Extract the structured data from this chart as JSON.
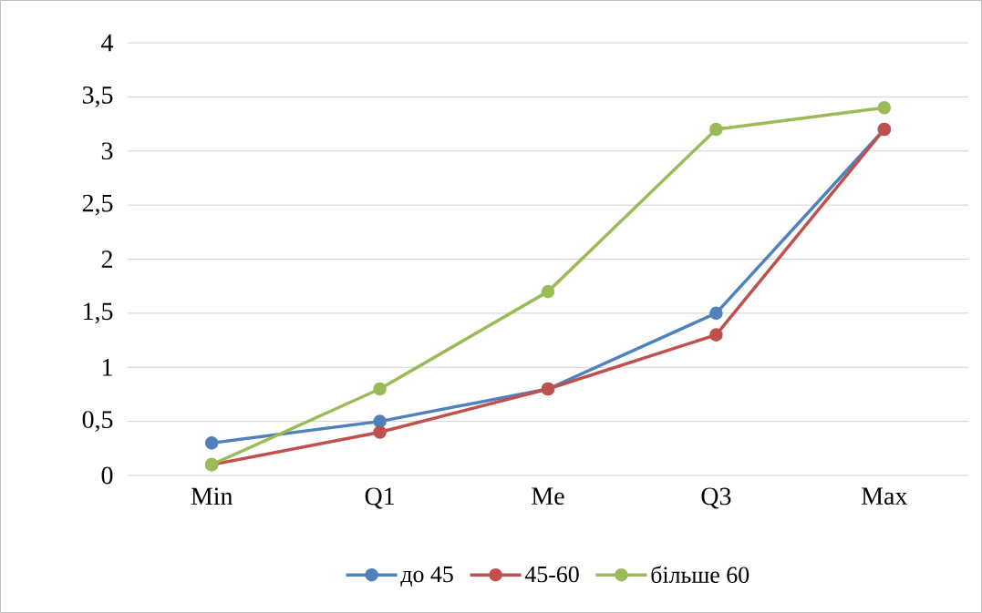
{
  "chart_data": {
    "type": "line",
    "categories": [
      "Min",
      "Q1",
      "Me",
      "Q3",
      "Max"
    ],
    "series": [
      {
        "name": "до 45",
        "color": "#4f81bd",
        "values": [
          0.3,
          0.5,
          0.8,
          1.5,
          3.2
        ]
      },
      {
        "name": "45-60",
        "color": "#c0504d",
        "values": [
          0.1,
          0.4,
          0.8,
          1.3,
          3.2
        ]
      },
      {
        "name": "більше 60",
        "color": "#9bbb59",
        "values": [
          0.1,
          0.8,
          1.7,
          3.2,
          3.4
        ]
      }
    ],
    "ylim": [
      0,
      4
    ],
    "yticks": [
      0,
      {
        "value": 0.5,
        "label": "0,5"
      },
      1,
      {
        "value": 1.5,
        "label": "1,5"
      },
      2,
      {
        "value": 2.5,
        "label": "2,5"
      },
      3,
      {
        "value": 3.5,
        "label": "3,5"
      },
      4
    ],
    "grid": "y",
    "legend": "bottom",
    "marker": "circle",
    "line_style": "solid"
  }
}
